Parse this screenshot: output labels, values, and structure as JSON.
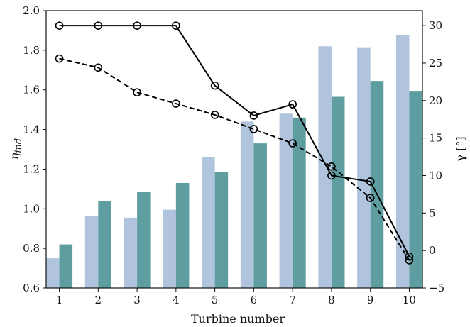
{
  "chart_data": {
    "type": "bar",
    "xlabel": "Turbine number",
    "ylabel_left": "η_ind",
    "ylabel_right": "γ [°]",
    "categories": [
      "1",
      "2",
      "3",
      "4",
      "5",
      "6",
      "7",
      "8",
      "9",
      "10"
    ],
    "ylim_left": [
      0.6,
      2.0
    ],
    "yticks_left": [
      "0.6",
      "0.8",
      "1.0",
      "1.2",
      "1.4",
      "1.6",
      "1.8",
      "2.0"
    ],
    "ylim_right": [
      -5,
      32
    ],
    "yticks_right": [
      "−5",
      "0",
      "5",
      "10",
      "15",
      "20",
      "25",
      "30"
    ],
    "bar_series": [
      {
        "color": "#b0c4de",
        "axis": "left",
        "values": [
          0.75,
          0.965,
          0.955,
          0.995,
          1.26,
          1.44,
          1.48,
          1.82,
          1.815,
          1.875
        ]
      },
      {
        "color": "#5f9ea0",
        "axis": "left",
        "values": [
          0.82,
          1.04,
          1.085,
          1.13,
          1.185,
          1.33,
          1.46,
          1.565,
          1.645,
          1.595
        ]
      }
    ],
    "line_series": [
      {
        "color": "#000000",
        "linestyle": "solid",
        "marker": "circle",
        "axis": "right",
        "values": [
          30,
          30,
          30,
          30,
          22,
          18,
          19.5,
          10,
          9.2,
          -0.8
        ]
      },
      {
        "color": "#000000",
        "linestyle": "dashed",
        "marker": "circle",
        "axis": "right",
        "values": [
          25.6,
          24.4,
          21.1,
          19.6,
          18.1,
          16.2,
          14.3,
          11.2,
          7.0,
          -1.3
        ]
      }
    ],
    "grid": false,
    "legend": "none"
  }
}
